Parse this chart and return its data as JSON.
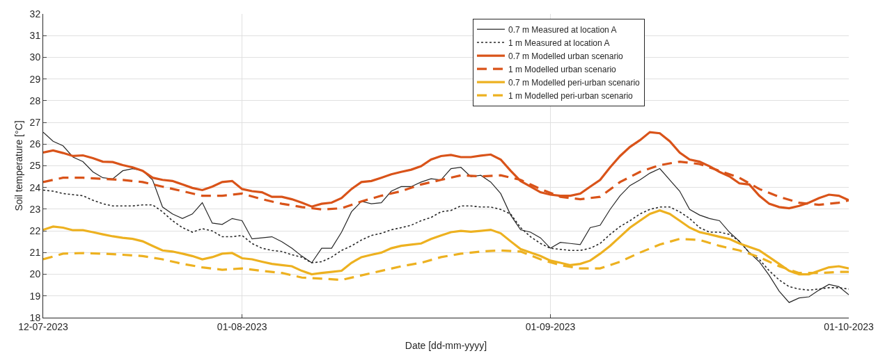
{
  "chart_data": {
    "type": "line",
    "xlabel": "Date [dd-mm-yyyy]",
    "ylabel": "Soil temperature [°C]",
    "x": [
      "2023-07-12",
      "2023-07-13",
      "2023-07-14",
      "2023-07-15",
      "2023-07-16",
      "2023-07-17",
      "2023-07-18",
      "2023-07-19",
      "2023-07-20",
      "2023-07-21",
      "2023-07-22",
      "2023-07-23",
      "2023-07-24",
      "2023-07-25",
      "2023-07-26",
      "2023-07-27",
      "2023-07-28",
      "2023-07-29",
      "2023-07-30",
      "2023-07-31",
      "2023-08-01",
      "2023-08-02",
      "2023-08-03",
      "2023-08-04",
      "2023-08-05",
      "2023-08-06",
      "2023-08-07",
      "2023-08-08",
      "2023-08-09",
      "2023-08-10",
      "2023-08-11",
      "2023-08-12",
      "2023-08-13",
      "2023-08-14",
      "2023-08-15",
      "2023-08-16",
      "2023-08-17",
      "2023-08-18",
      "2023-08-19",
      "2023-08-20",
      "2023-08-21",
      "2023-08-22",
      "2023-08-23",
      "2023-08-24",
      "2023-08-25",
      "2023-08-26",
      "2023-08-27",
      "2023-08-28",
      "2023-08-29",
      "2023-08-30",
      "2023-08-31",
      "2023-09-01",
      "2023-09-02",
      "2023-09-03",
      "2023-09-04",
      "2023-09-05",
      "2023-09-06",
      "2023-09-07",
      "2023-09-08",
      "2023-09-09",
      "2023-09-10",
      "2023-09-11",
      "2023-09-12",
      "2023-09-13",
      "2023-09-14",
      "2023-09-15",
      "2023-09-16",
      "2023-09-17",
      "2023-09-18",
      "2023-09-19",
      "2023-09-20",
      "2023-09-21",
      "2023-09-22",
      "2023-09-23",
      "2023-09-24",
      "2023-09-25",
      "2023-09-26",
      "2023-09-27",
      "2023-09-28",
      "2023-09-29",
      "2023-09-30",
      "2023-10-01"
    ],
    "series": [
      {
        "name": "0.7 m Measured at location A",
        "color": "#262626",
        "line_style": "solid",
        "values": [
          26.55,
          26.13,
          25.92,
          25.4,
          25.19,
          24.72,
          24.45,
          24.4,
          24.77,
          24.87,
          24.77,
          24.35,
          23.1,
          22.78,
          22.57,
          22.78,
          23.3,
          22.36,
          22.3,
          22.57,
          22.47,
          21.63,
          21.68,
          21.73,
          21.5,
          21.2,
          20.84,
          20.53,
          21.2,
          21.2,
          21.94,
          22.88,
          23.36,
          23.25,
          23.3,
          23.83,
          24.04,
          24.04,
          24.25,
          24.4,
          24.35,
          24.87,
          24.93,
          24.5,
          24.56,
          24.25,
          23.72,
          22.73,
          22.05,
          21.94,
          21.68,
          21.2,
          21.47,
          21.42,
          21.37,
          22.15,
          22.26,
          22.99,
          23.62,
          24.09,
          24.35,
          24.66,
          24.87,
          24.35,
          23.83,
          22.99,
          22.73,
          22.57,
          22.47,
          21.94,
          21.52,
          21.0,
          20.58,
          19.95,
          19.22,
          18.7,
          18.91,
          18.96,
          19.27,
          19.53,
          19.43,
          19.06
        ]
      },
      {
        "name": "1 m Measured at location A",
        "color": "#262626",
        "line_style": "dotted",
        "values": [
          23.88,
          23.83,
          23.72,
          23.67,
          23.62,
          23.41,
          23.25,
          23.15,
          23.15,
          23.15,
          23.2,
          23.2,
          22.88,
          22.47,
          22.15,
          21.94,
          22.1,
          22.0,
          21.73,
          21.73,
          21.79,
          21.42,
          21.2,
          21.1,
          21.05,
          20.9,
          20.79,
          20.53,
          20.58,
          20.79,
          21.1,
          21.31,
          21.58,
          21.79,
          21.89,
          22.05,
          22.15,
          22.26,
          22.47,
          22.62,
          22.88,
          22.94,
          23.15,
          23.15,
          23.1,
          23.1,
          22.99,
          22.78,
          22.15,
          21.73,
          21.42,
          21.2,
          21.15,
          21.1,
          21.1,
          21.2,
          21.42,
          21.84,
          22.2,
          22.47,
          22.78,
          22.99,
          23.1,
          23.1,
          22.88,
          22.57,
          22.15,
          21.94,
          21.94,
          21.84,
          21.52,
          21.0,
          20.69,
          20.16,
          19.74,
          19.43,
          19.32,
          19.27,
          19.32,
          19.38,
          19.38,
          19.32
        ]
      },
      {
        "name": "0.7 m Modelled urban scenario",
        "color": "#d95319",
        "line_style": "solid",
        "values": [
          25.61,
          25.71,
          25.59,
          25.45,
          25.48,
          25.35,
          25.19,
          25.17,
          25.03,
          24.93,
          24.77,
          24.45,
          24.35,
          24.3,
          24.14,
          23.98,
          23.88,
          24.04,
          24.25,
          24.3,
          23.93,
          23.83,
          23.78,
          23.57,
          23.57,
          23.46,
          23.3,
          23.12,
          23.25,
          23.3,
          23.51,
          23.93,
          24.25,
          24.3,
          24.45,
          24.61,
          24.72,
          24.82,
          24.98,
          25.29,
          25.45,
          25.5,
          25.4,
          25.4,
          25.47,
          25.52,
          25.29,
          24.77,
          24.3,
          24.04,
          23.78,
          23.67,
          23.62,
          23.62,
          23.72,
          24.04,
          24.35,
          24.93,
          25.45,
          25.87,
          26.18,
          26.55,
          26.5,
          26.13,
          25.61,
          25.29,
          25.19,
          24.98,
          24.72,
          24.51,
          24.19,
          24.14,
          23.62,
          23.25,
          23.1,
          23.04,
          23.15,
          23.3,
          23.51,
          23.67,
          23.62,
          23.41
        ]
      },
      {
        "name": "1 m Modelled urban scenario",
        "color": "#d95319",
        "line_style": "dashed",
        "x": [
          "2023-07-12",
          "2023-07-14",
          "2023-07-16",
          "2023-07-18",
          "2023-07-20",
          "2023-07-22",
          "2023-07-24",
          "2023-07-26",
          "2023-07-28",
          "2023-07-30",
          "2023-08-01",
          "2023-08-03",
          "2023-08-05",
          "2023-08-07",
          "2023-08-09",
          "2023-08-11",
          "2023-08-13",
          "2023-08-15",
          "2023-08-17",
          "2023-08-19",
          "2023-08-21",
          "2023-08-23",
          "2023-08-25",
          "2023-08-27",
          "2023-08-29",
          "2023-08-31",
          "2023-09-02",
          "2023-09-04",
          "2023-09-06",
          "2023-09-08",
          "2023-09-10",
          "2023-09-12",
          "2023-09-14",
          "2023-09-16",
          "2023-09-18",
          "2023-09-20",
          "2023-09-22",
          "2023-09-24",
          "2023-09-26",
          "2023-09-28",
          "2023-09-30",
          "2023-10-01"
        ],
        "values": [
          24.25,
          24.45,
          24.45,
          24.4,
          24.35,
          24.25,
          24.04,
          23.83,
          23.62,
          23.62,
          23.72,
          23.46,
          23.25,
          23.1,
          22.99,
          23.04,
          23.36,
          23.62,
          23.83,
          24.14,
          24.35,
          24.56,
          24.51,
          24.56,
          24.35,
          23.93,
          23.57,
          23.46,
          23.57,
          24.25,
          24.72,
          25.03,
          25.19,
          25.08,
          24.77,
          24.45,
          23.93,
          23.57,
          23.3,
          23.2,
          23.3,
          23.41
        ]
      },
      {
        "name": "0.7 m Modelled peri-urban scenario",
        "color": "#edb120",
        "line_style": "solid",
        "values": [
          22.05,
          22.2,
          22.15,
          22.03,
          22.03,
          21.94,
          21.84,
          21.75,
          21.68,
          21.63,
          21.52,
          21.31,
          21.1,
          21.05,
          20.95,
          20.84,
          20.69,
          20.79,
          20.95,
          20.98,
          20.74,
          20.69,
          20.58,
          20.48,
          20.42,
          20.37,
          20.16,
          20.0,
          20.06,
          20.11,
          20.16,
          20.53,
          20.79,
          20.9,
          21.0,
          21.2,
          21.31,
          21.37,
          21.42,
          21.63,
          21.79,
          21.94,
          22.0,
          21.96,
          22.0,
          22.05,
          21.89,
          21.52,
          21.16,
          21.0,
          20.84,
          20.63,
          20.53,
          20.42,
          20.48,
          20.63,
          20.95,
          21.31,
          21.73,
          22.15,
          22.47,
          22.78,
          22.94,
          22.78,
          22.47,
          22.15,
          21.94,
          21.84,
          21.73,
          21.63,
          21.42,
          21.26,
          21.1,
          20.79,
          20.48,
          20.16,
          20.0,
          20.0,
          20.16,
          20.32,
          20.37,
          20.27
        ]
      },
      {
        "name": "1 m Modelled peri-urban scenario",
        "color": "#edb120",
        "line_style": "dashed",
        "x": [
          "2023-07-12",
          "2023-07-14",
          "2023-07-16",
          "2023-07-18",
          "2023-07-20",
          "2023-07-22",
          "2023-07-24",
          "2023-07-26",
          "2023-07-28",
          "2023-07-30",
          "2023-08-01",
          "2023-08-03",
          "2023-08-05",
          "2023-08-07",
          "2023-08-09",
          "2023-08-11",
          "2023-08-13",
          "2023-08-15",
          "2023-08-17",
          "2023-08-19",
          "2023-08-21",
          "2023-08-23",
          "2023-08-25",
          "2023-08-27",
          "2023-08-29",
          "2023-08-31",
          "2023-09-02",
          "2023-09-04",
          "2023-09-06",
          "2023-09-08",
          "2023-09-10",
          "2023-09-12",
          "2023-09-14",
          "2023-09-16",
          "2023-09-18",
          "2023-09-20",
          "2023-09-22",
          "2023-09-24",
          "2023-09-26",
          "2023-09-28",
          "2023-09-30",
          "2023-10-01"
        ],
        "values": [
          20.69,
          20.95,
          20.98,
          20.95,
          20.9,
          20.84,
          20.69,
          20.48,
          20.32,
          20.21,
          20.27,
          20.16,
          20.06,
          19.85,
          19.8,
          19.74,
          19.95,
          20.16,
          20.37,
          20.53,
          20.79,
          20.95,
          21.05,
          21.1,
          21.05,
          20.69,
          20.42,
          20.27,
          20.27,
          20.58,
          21.0,
          21.37,
          21.63,
          21.58,
          21.31,
          21.1,
          20.79,
          20.37,
          20.06,
          20.06,
          20.11,
          20.11
        ]
      }
    ],
    "xlim": [
      "2023-07-12",
      "2023-10-01"
    ],
    "xticks": [
      {
        "value": "2023-07-12",
        "label": "12-07-2023"
      },
      {
        "value": "2023-08-01",
        "label": "01-08-2023"
      },
      {
        "value": "2023-09-01",
        "label": "01-09-2023"
      },
      {
        "value": "2023-10-01",
        "label": "01-10-2023"
      }
    ],
    "ylim": [
      18,
      32
    ],
    "yticks": [
      18,
      19,
      20,
      21,
      22,
      23,
      24,
      25,
      26,
      27,
      28,
      29,
      30,
      31,
      32
    ],
    "grid": true,
    "legend": "top",
    "marker": "none"
  }
}
